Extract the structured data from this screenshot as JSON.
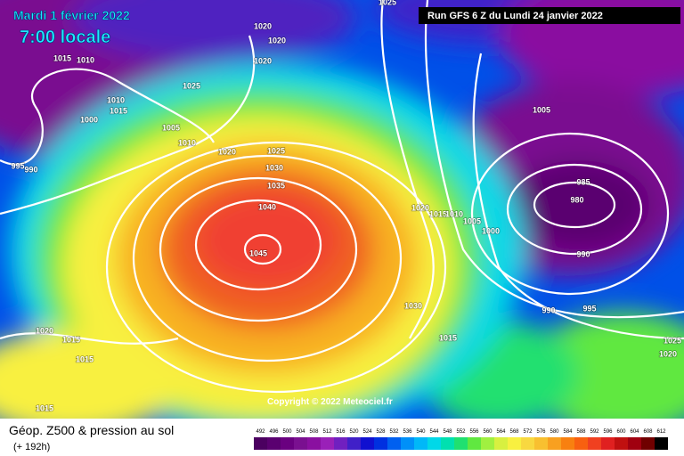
{
  "header": {
    "date": "Mardi 1 février 2022",
    "time": "7:00 locale",
    "run": "Run GFS 6 Z du Lundi 24 janvier 2022"
  },
  "map": {
    "copyright": "Copyright © 2022 Meteociel.fr",
    "isobar_labels": [
      1025,
      1020,
      1020,
      1020,
      1015,
      1010,
      1025,
      1010,
      1015,
      1000,
      1005,
      1010,
      1020,
      1025,
      1030,
      1035,
      1040,
      1045,
      995,
      990,
      1005,
      985,
      980,
      1020,
      1015,
      1010,
      1005,
      1000,
      990,
      990,
      995,
      1030,
      1015,
      1020,
      1015,
      1015,
      1015,
      1025,
      1020
    ]
  },
  "footer": {
    "title": "Géop. Z500 & pression au sol",
    "lead": "(+ 192h)"
  },
  "colorbar": {
    "levels": [
      492,
      496,
      500,
      504,
      508,
      512,
      516,
      520,
      524,
      528,
      532,
      536,
      540,
      544,
      548,
      552,
      556,
      560,
      564,
      568,
      572,
      576,
      580,
      584,
      588,
      592,
      596,
      600,
      604,
      608,
      612
    ],
    "colors": [
      "#4b0060",
      "#5a0070",
      "#6a0080",
      "#7a1090",
      "#8a10a0",
      "#9a20b8",
      "#7020c0",
      "#4020c8",
      "#1010d0",
      "#0030e0",
      "#0060f0",
      "#0090f8",
      "#00b8f8",
      "#00d8e8",
      "#00e0b0",
      "#20e070",
      "#60e840",
      "#a0f040",
      "#d8f040",
      "#f8f040",
      "#f8d840",
      "#f8c030",
      "#f8a020",
      "#f88010",
      "#f86010",
      "#f04020",
      "#e02020",
      "#c01010",
      "#a00010",
      "#700000",
      "#000000"
    ]
  }
}
